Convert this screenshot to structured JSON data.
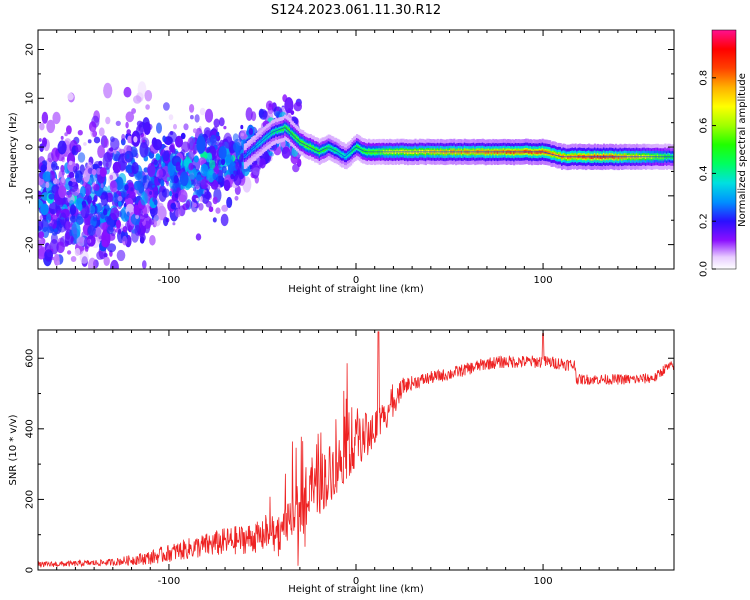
{
  "title": "S124.2023.061.11.30.R12",
  "colors": {
    "snr_line": "#ee2222",
    "spine": "#0033ff",
    "frame": "#000000"
  },
  "chart_data": [
    {
      "type": "heatmap",
      "xlabel": "Height of straight line (km)",
      "ylabel": "Frequency (Hz)",
      "xlim": [
        -170,
        170
      ],
      "ylim": [
        -25,
        24
      ],
      "xticks": [
        -100,
        0,
        100
      ],
      "xtick_labels": [
        "-100",
        "0",
        "100"
      ],
      "yticks": [
        -20,
        -10,
        0,
        10,
        20
      ],
      "ytick_labels": [
        "-20",
        "-10",
        "0",
        "10",
        "20"
      ],
      "colorbar": {
        "label": "Normalized spectral amplitude",
        "range": [
          0,
          1
        ],
        "ticks": [
          0.0,
          0.2,
          0.4,
          0.6,
          0.8
        ],
        "tick_labels": [
          "0.0",
          "0.2",
          "0.4",
          "0.6",
          "0.8"
        ],
        "colormap": "gist_ncar-like"
      },
      "ridge": {
        "x": [
          -170,
          -130,
          -100,
          -80,
          -60,
          -45,
          -38,
          -30,
          -25,
          -20,
          -15,
          -10,
          -6,
          -3,
          0,
          5,
          20,
          50,
          80,
          100,
          110,
          130,
          150,
          170
        ],
        "y": [
          -12,
          -10,
          -5,
          -4,
          -2,
          3,
          4,
          1,
          0,
          -1,
          0,
          -1,
          -2,
          -1,
          0,
          -1,
          -1,
          -1,
          -1,
          -1,
          -2,
          -2,
          -2,
          -2
        ],
        "amplitude": [
          0.1,
          0.15,
          0.2,
          0.25,
          0.3,
          0.45,
          0.55,
          0.6,
          0.6,
          0.55,
          0.5,
          0.45,
          0.4,
          0.45,
          0.5,
          0.55,
          0.7,
          0.8,
          0.85,
          0.85,
          0.8,
          0.9,
          0.75,
          0.5
        ]
      },
      "scatter_region": {
        "x": [
          -170,
          -40
        ],
        "note_free": true
      }
    },
    {
      "type": "line",
      "xlabel": "Height of straight line (km)",
      "ylabel": "SNR (10 * v/v)",
      "xlim": [
        -170,
        170
      ],
      "ylim": [
        0,
        680
      ],
      "xticks": [
        -100,
        0,
        100
      ],
      "xtick_labels": [
        "-100",
        "0",
        "100"
      ],
      "yticks": [
        0,
        200,
        400,
        600
      ],
      "ytick_labels": [
        "0",
        "200",
        "400",
        "600"
      ],
      "trend": {
        "x": [
          -170,
          -150,
          -130,
          -110,
          -90,
          -70,
          -50,
          -40,
          -30,
          -20,
          -10,
          0,
          10,
          20,
          25,
          30,
          40,
          50,
          60,
          70,
          80,
          90,
          100,
          110,
          117,
          118,
          130,
          140,
          150,
          160,
          165,
          170
        ],
        "y": [
          15,
          18,
          22,
          35,
          60,
          80,
          95,
          110,
          160,
          240,
          300,
          360,
          400,
          470,
          520,
          530,
          545,
          555,
          570,
          585,
          590,
          590,
          590,
          585,
          580,
          540,
          540,
          540,
          540,
          545,
          570,
          580
        ],
        "noise": [
          8,
          8,
          10,
          20,
          30,
          40,
          45,
          55,
          75,
          90,
          80,
          70,
          60,
          35,
          25,
          20,
          18,
          18,
          18,
          18,
          18,
          18,
          18,
          18,
          18,
          15,
          15,
          15,
          15,
          15,
          15,
          15
        ]
      }
    }
  ]
}
